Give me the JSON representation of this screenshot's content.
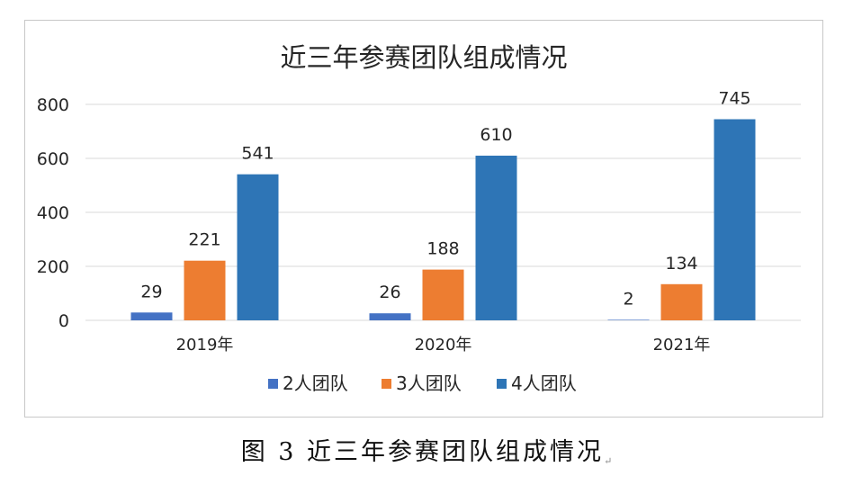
{
  "chart_data": {
    "type": "bar",
    "title": "近三年参赛团队组成情况",
    "categories": [
      "2019年",
      "2020年",
      "2021年"
    ],
    "series": [
      {
        "name": "2人团队",
        "values": [
          29,
          26,
          2
        ],
        "color": "#4472C4"
      },
      {
        "name": "3人团队",
        "values": [
          221,
          188,
          134
        ],
        "color": "#ED7D31"
      },
      {
        "name": "4人团队",
        "values": [
          541,
          610,
          745
        ],
        "color": "#2E75B6"
      }
    ],
    "ylim": [
      0,
      800
    ],
    "yticks": [
      0,
      200,
      400,
      600,
      800
    ],
    "grid": true,
    "legend_position": "bottom"
  },
  "caption": {
    "text": "图 3  近三年参赛团队组成情况",
    "mark": "↵"
  }
}
